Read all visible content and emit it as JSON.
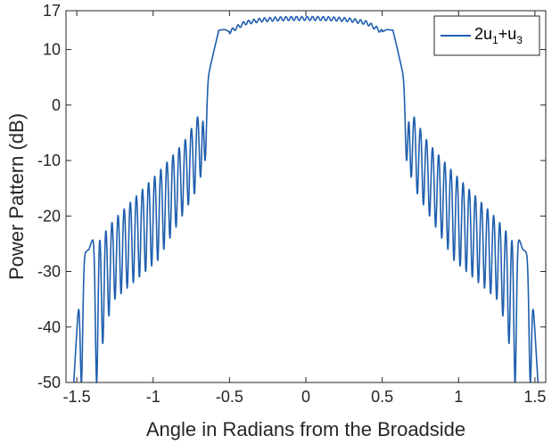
{
  "chart_data": {
    "type": "line",
    "xlabel": "Angle in Radians from the Broadside",
    "ylabel": "Power Pattern (dB)",
    "xlim": [
      -1.5708,
      1.5708
    ],
    "ylim": [
      -50,
      17
    ],
    "xticks": [
      -1.5,
      -1,
      -0.5,
      0,
      0.5,
      1,
      1.5
    ],
    "yticks": [
      -50,
      -40,
      -30,
      -20,
      -10,
      0,
      10,
      17
    ],
    "xtick_labels": [
      "-1.5",
      "-1",
      "-0.5",
      "0",
      "0.5",
      "1",
      "1.5"
    ],
    "ytick_labels": [
      "-50",
      "-40",
      "-30",
      "-20",
      "-10",
      "0",
      "10",
      "17"
    ],
    "grid": true,
    "legend": {
      "position": "top-right",
      "entries": [
        {
          "base": "2u",
          "sub1": "1",
          "plus": "+u",
          "sub2": "3"
        }
      ]
    },
    "series": [
      {
        "color": "#1f5fae",
        "envelope": {
          "x": [
            -1.52,
            -1.47,
            -1.42,
            -1.37,
            -1.3,
            -1.2,
            -1.1,
            -1.0,
            -0.9,
            -0.8,
            -0.7,
            -0.65,
            -0.6,
            -0.57,
            -0.53,
            -0.5,
            -0.4,
            -0.3,
            -0.2,
            -0.1,
            0,
            0.1,
            0.2,
            0.3,
            0.4,
            0.5,
            0.53,
            0.57,
            0.6,
            0.65,
            0.7,
            0.8,
            0.9,
            1.0,
            1.1,
            1.2,
            1.3,
            1.37,
            1.42,
            1.47,
            1.52
          ],
          "y": [
            -50,
            -27,
            -26,
            -22,
            -20,
            -17,
            -14,
            -11,
            -8,
            -5,
            0,
            4,
            10,
            13.5,
            13.6,
            13.2,
            14.8,
            15.3,
            15.5,
            15.6,
            15.6,
            15.6,
            15.5,
            15.3,
            14.8,
            13.2,
            13.6,
            13.5,
            10,
            4,
            0,
            -5,
            -8,
            -11,
            -14,
            -17,
            -20,
            -22,
            -26,
            -27,
            -50
          ]
        },
        "nulls": {
          "left": [
            -1.47,
            -1.37,
            -1.33,
            -1.29,
            -1.25,
            -1.21,
            -1.17,
            -1.13,
            -1.09,
            -1.05,
            -1.01,
            -0.97,
            -0.93,
            -0.89,
            -0.85,
            -0.81,
            -0.77,
            -0.73,
            -0.69,
            -0.66
          ],
          "right": [
            0.66,
            0.69,
            0.73,
            0.77,
            0.81,
            0.85,
            0.89,
            0.93,
            0.97,
            1.01,
            1.05,
            1.09,
            1.13,
            1.17,
            1.21,
            1.25,
            1.29,
            1.33,
            1.37,
            1.47
          ],
          "depth": [
            -50,
            -50,
            -43,
            -38,
            -35,
            -34,
            -33,
            -32,
            -31,
            -30,
            -29,
            -28,
            -26,
            -24,
            -22,
            -20,
            -18,
            -16,
            -13,
            -10
          ]
        }
      }
    ]
  }
}
